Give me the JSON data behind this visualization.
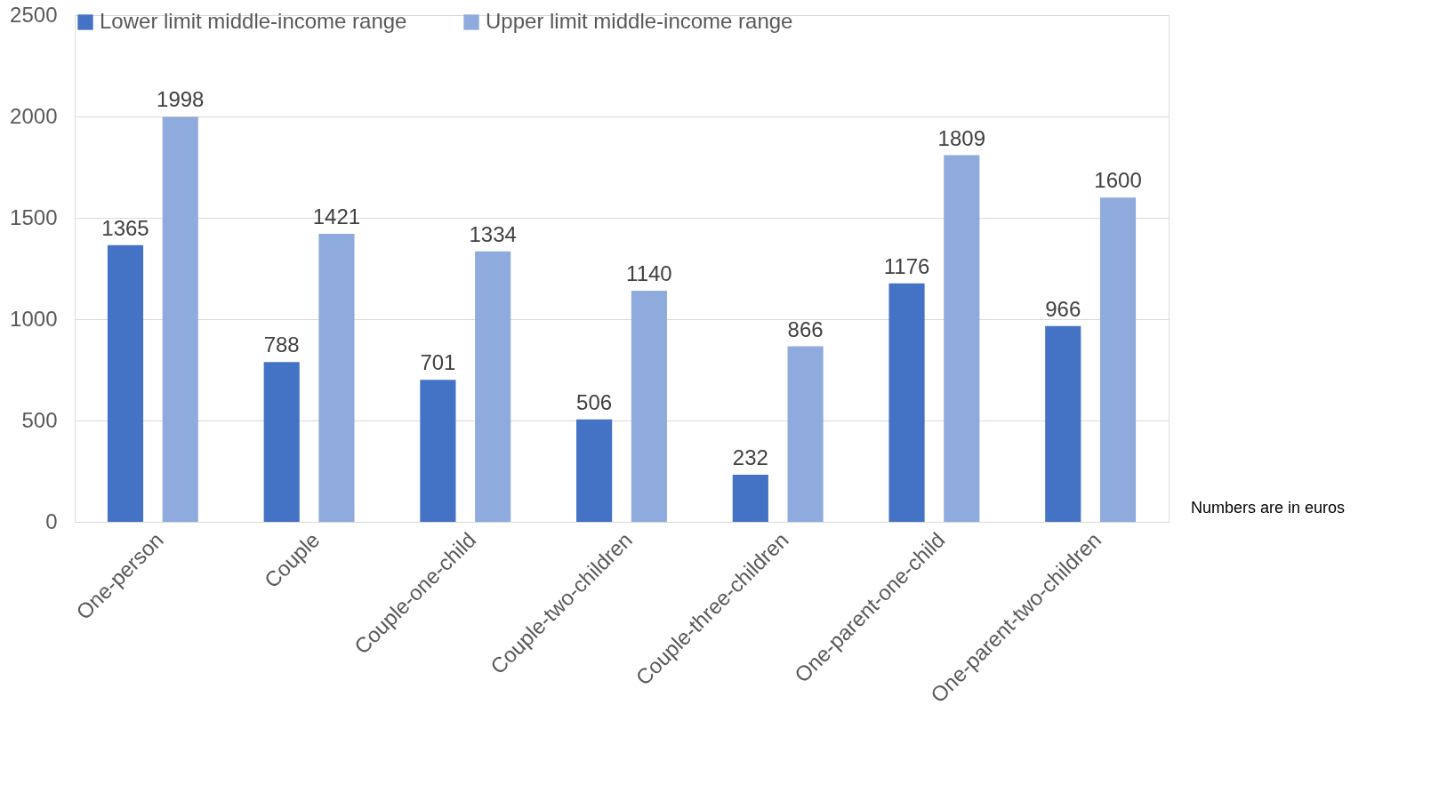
{
  "chart_data": {
    "type": "bar",
    "categories": [
      "One-person",
      "Couple",
      "Couple-one-child",
      "Couple-two-children",
      "Couple-three-children",
      "One-parent-one-child",
      "One-parent-two-children"
    ],
    "series": [
      {
        "name": "Lower limit middle-income range",
        "color": "#4472c4",
        "values": [
          1365,
          788,
          701,
          506,
          232,
          1176,
          966
        ]
      },
      {
        "name": "Upper limit middle-income range",
        "color": "#8faadc",
        "values": [
          1998,
          1421,
          1334,
          1140,
          866,
          1809,
          1600
        ]
      }
    ],
    "ylim": [
      0,
      2500
    ],
    "yticks": [
      0,
      500,
      1000,
      1500,
      2000,
      2500
    ],
    "grid": "y",
    "legend": "top",
    "data_labels": true,
    "annotations": [
      "Numbers are in euros"
    ]
  }
}
